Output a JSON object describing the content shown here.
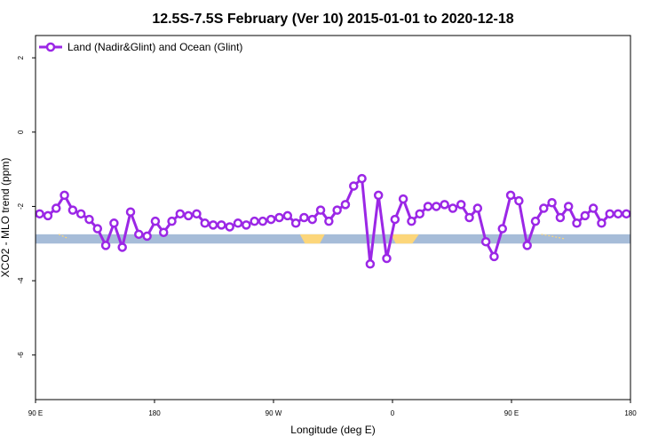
{
  "chart_data": {
    "type": "line",
    "title": "12.5S-7.5S February (Ver 10)   2015-01-01 to 2020-12-18",
    "xlabel": "Longitude (deg E)",
    "ylabel": "XCO2 - MLO trend (ppm)",
    "xlim": [
      90,
      450
    ],
    "ylim": [
      -7.2,
      2.6
    ],
    "x_ticks": [
      {
        "value": 90,
        "label": "90 E"
      },
      {
        "value": 162,
        "label": "180"
      },
      {
        "value": 234,
        "label": "90 W"
      },
      {
        "value": 306,
        "label": "0"
      },
      {
        "value": 378,
        "label": "90 E"
      },
      {
        "value": 450,
        "label": "180"
      }
    ],
    "y_ticks": [
      {
        "value": 2,
        "label": "2"
      },
      {
        "value": 0,
        "label": "0"
      },
      {
        "value": -2,
        "label": "-2"
      },
      {
        "value": -4,
        "label": "-4"
      },
      {
        "value": -6,
        "label": "-6"
      }
    ],
    "legend": {
      "position": "top-left",
      "entries": [
        "Land (Nadir&Glint) and Ocean (Glint)"
      ]
    },
    "grid": false,
    "surface_band": {
      "y_top": -2.75,
      "y_bottom": -3.0,
      "ocean_color": "#a6bcd8",
      "land_color": "#fcd67a",
      "land_segments": [
        {
          "top": [
            250,
            265
          ],
          "bottom": [
            253,
            262
          ]
        },
        {
          "top": [
            305,
            322
          ],
          "bottom": [
            308,
            318
          ]
        }
      ],
      "land_flecks": [
        [
          104,
          110
        ],
        [
          396,
          410
        ]
      ]
    },
    "series": [
      {
        "name": "Land (Nadir&Glint) and Ocean (Glint)",
        "color": "#9b27e6",
        "x": [
          92.5,
          97.5,
          102.5,
          107.5,
          112.5,
          117.5,
          122.5,
          127.5,
          132.5,
          137.5,
          142.5,
          147.5,
          152.5,
          157.5,
          162.5,
          167.5,
          172.5,
          177.5,
          182.5,
          187.5,
          192.5,
          197.5,
          202.5,
          207.5,
          212.5,
          217.5,
          222.5,
          227.5,
          232.5,
          237.5,
          242.5,
          247.5,
          252.5,
          257.5,
          262.5,
          267.5,
          272.5,
          277.5,
          282.5,
          287.5,
          292.5,
          297.5,
          302.5,
          307.5,
          312.5,
          317.5,
          322.5,
          327.5,
          332.5,
          337.5,
          342.5,
          347.5,
          352.5,
          357.5,
          362.5,
          367.5,
          372.5,
          377.5,
          382.5,
          387.5,
          392.5,
          397.5,
          402.5,
          407.5,
          412.5,
          417.5,
          422.5,
          427.5,
          432.5,
          437.5,
          442.5,
          447.5
        ],
        "values": [
          -2.2,
          -2.25,
          -2.05,
          -1.7,
          -2.1,
          -2.2,
          -2.35,
          -2.6,
          -3.05,
          -2.45,
          -3.1,
          -2.15,
          -2.75,
          -2.8,
          -2.4,
          -2.7,
          -2.4,
          -2.2,
          -2.25,
          -2.2,
          -2.45,
          -2.5,
          -2.5,
          -2.55,
          -2.45,
          -2.5,
          -2.4,
          -2.4,
          -2.35,
          -2.3,
          -2.25,
          -2.45,
          -2.3,
          -2.35,
          -2.1,
          -2.4,
          -2.1,
          -1.95,
          -1.45,
          -1.25,
          -3.55,
          -1.7,
          -3.4,
          -2.35,
          -1.8,
          -2.4,
          -2.2,
          -2.0,
          -2.0,
          -1.95,
          -2.05,
          -1.95,
          -2.3,
          -2.05,
          -2.95,
          -3.35,
          -2.6,
          -1.7,
          -1.85,
          -3.05,
          -2.4,
          -2.05,
          -1.9,
          -2.3,
          -2.0,
          -2.45,
          -2.25,
          -2.05,
          -2.45,
          -2.2,
          -2.2,
          -2.2
        ]
      }
    ]
  }
}
